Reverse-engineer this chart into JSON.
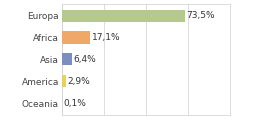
{
  "categories": [
    "Europa",
    "Africa",
    "Asia",
    "America",
    "Oceania"
  ],
  "values": [
    73.5,
    17.1,
    6.4,
    2.9,
    0.1
  ],
  "labels": [
    "73,5%",
    "17,1%",
    "6,4%",
    "2,9%",
    "0,1%"
  ],
  "bar_colors": [
    "#b5c98e",
    "#f0a868",
    "#7a8fc0",
    "#e8d060",
    "#f4b8a0"
  ],
  "background_color": "#ffffff",
  "xlim": [
    0,
    100
  ],
  "xticks": [
    0,
    25,
    50,
    75,
    100
  ],
  "label_fontsize": 6.5,
  "tick_fontsize": 6.5,
  "bar_height": 0.55,
  "grid_color": "#d0d0d0"
}
